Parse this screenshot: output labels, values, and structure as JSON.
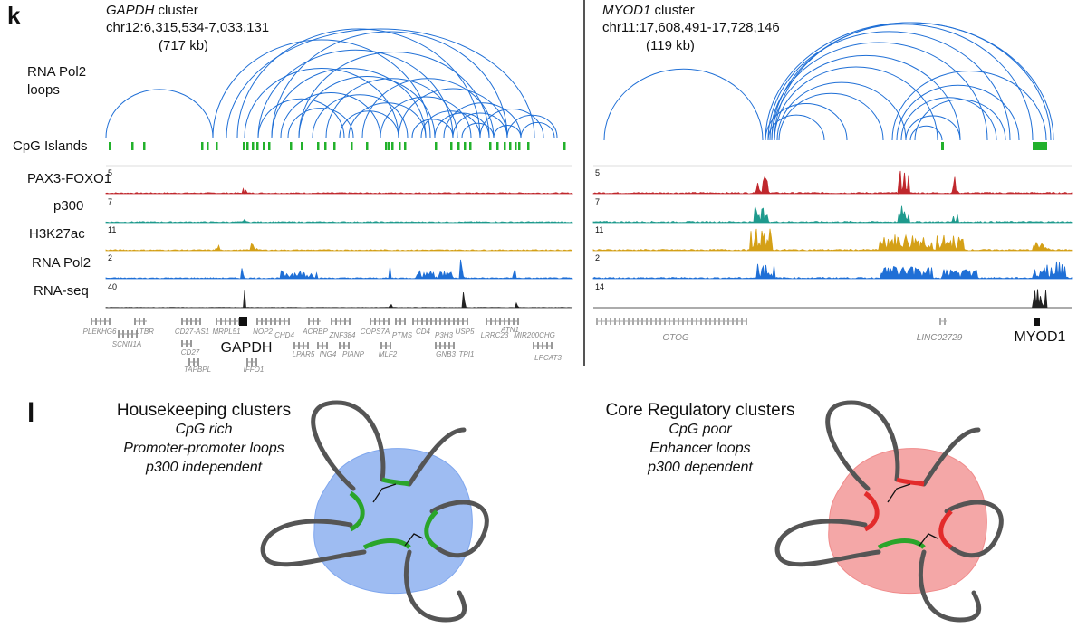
{
  "panel_k": {
    "label": "k",
    "track_labels": [
      "RNA Pol2 loops",
      "CpG Islands",
      "PAX3-FOXO1",
      "p300",
      "H3K27ac",
      "RNA Pol2",
      "RNA-seq"
    ],
    "left": {
      "gene": "GAPDH",
      "suffix": "cluster",
      "coords": "chr12:6,315,534-7,033,131",
      "size": "(717 kb)",
      "scales": [
        5,
        7,
        11,
        2,
        40
      ],
      "genes": [
        "PLEKHG6",
        "SCNN1A",
        "LTBR",
        "CD27-AS1",
        "CD27",
        "TAPBPL",
        "MRPL51",
        "GAPDH",
        "IFFO1",
        "NOP2",
        "CHD4",
        "LPAR5",
        "ACRBP",
        "ING4",
        "ZNF384",
        "PIANP",
        "COPS7A",
        "MLF2",
        "PTMS",
        "CD4",
        "P3H3",
        "GNB3",
        "USP5",
        "TPI1",
        "LRRC23",
        "ATN1",
        "MIR200CHG",
        "LPCAT3"
      ]
    },
    "right": {
      "gene": "MYOD1",
      "suffix": "cluster",
      "coords": "chr11:17,608,491-17,728,146",
      "size": "(119 kb)",
      "scales": [
        5,
        7,
        11,
        2,
        14
      ],
      "genes": [
        "OTOG",
        "LINC02729",
        "MYOD1"
      ]
    }
  },
  "panel_l": {
    "label": "l",
    "left": {
      "title": "Housekeeping clusters",
      "lines": [
        "CpG rich",
        "Promoter-promoter loops",
        "p300 independent"
      ]
    },
    "right": {
      "title": "Core Regulatory clusters",
      "lines": [
        "CpG poor",
        "Enhancer loops",
        "p300 dependent"
      ]
    }
  }
}
